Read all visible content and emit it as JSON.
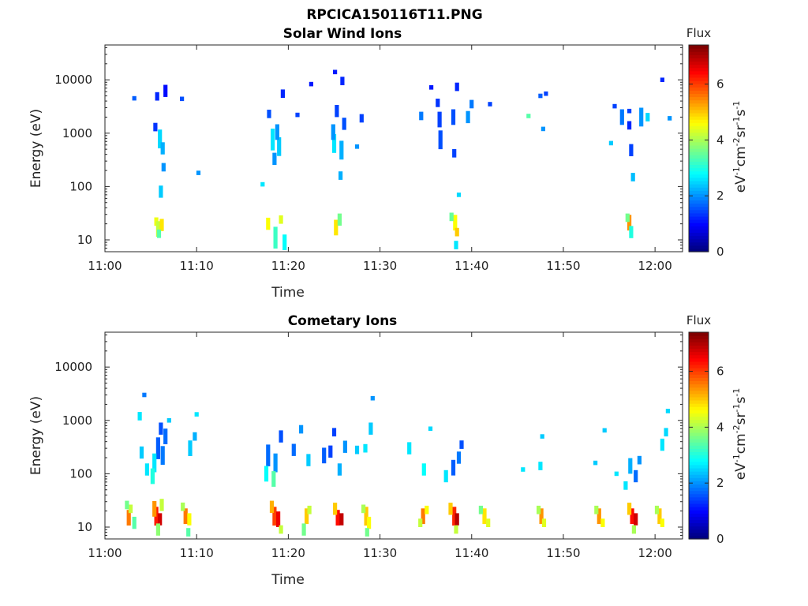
{
  "figure": {
    "title": "RPCICA150116T11.PNG"
  },
  "chart_data": [
    {
      "type": "heatmap",
      "title": "Solar Wind Ions",
      "xlabel": "Time",
      "ylabel": "Energy (eV)",
      "y_scale": "log",
      "xlim": [
        "11:00",
        "12:03"
      ],
      "ylim": [
        6,
        45000
      ],
      "x_ticks": [
        "11:00",
        "11:10",
        "11:20",
        "11:30",
        "11:40",
        "11:50",
        "12:00"
      ],
      "y_ticks": [
        {
          "value": 10,
          "label": "10"
        },
        {
          "value": 100,
          "label": "100"
        },
        {
          "value": 1000,
          "label": "1000"
        },
        {
          "value": 10000,
          "label": "10000"
        }
      ],
      "colorbar": {
        "title": "Flux",
        "unit": "eV-1cm-2sr-1s-1",
        "range": [
          0,
          7.4
        ],
        "ticks": [
          0,
          2,
          4,
          6
        ],
        "colormap": "jet"
      },
      "cells": [
        [
          5.6,
          22,
          4.5,
          1.2
        ],
        [
          5.8,
          16,
          4.2,
          1.4
        ],
        [
          6.2,
          19,
          4.8,
          1.3
        ],
        [
          5.9,
          13,
          3.4,
          1.2
        ],
        [
          6.0,
          780,
          2.5,
          1.5
        ],
        [
          6.3,
          520,
          2.2,
          1.3
        ],
        [
          5.7,
          4900,
          1.2,
          1.2
        ],
        [
          6.6,
          6200,
          1.0,
          1.3
        ],
        [
          5.5,
          1300,
          1.3,
          1.2
        ],
        [
          6.4,
          230,
          2.0,
          1.2
        ],
        [
          6.1,
          80,
          2.4,
          1.3
        ],
        [
          3.2,
          4500,
          1.6,
          1.1
        ],
        [
          8.4,
          4400,
          1.5,
          1.1
        ],
        [
          10.2,
          180,
          2.0,
          1.1
        ],
        [
          17.8,
          20,
          4.6,
          1.3
        ],
        [
          18.6,
          11,
          3.2,
          1.6
        ],
        [
          19.2,
          24,
          4.4,
          1.2
        ],
        [
          19.6,
          9,
          2.8,
          1.4
        ],
        [
          18.3,
          760,
          2.6,
          1.6
        ],
        [
          19.0,
          560,
          2.4,
          1.5
        ],
        [
          18.8,
          1050,
          2.0,
          1.4
        ],
        [
          17.9,
          2300,
          1.5,
          1.2
        ],
        [
          19.4,
          5500,
          1.2,
          1.2
        ],
        [
          17.2,
          110,
          2.6,
          1.1
        ],
        [
          18.5,
          330,
          2.0,
          1.3
        ],
        [
          22.5,
          8300,
          1.1,
          1.1
        ],
        [
          21.0,
          2200,
          1.4,
          1.1
        ],
        [
          25.2,
          17,
          4.8,
          1.4
        ],
        [
          25.6,
          24,
          3.6,
          1.3
        ],
        [
          25.0,
          640,
          2.6,
          1.5
        ],
        [
          25.8,
          480,
          2.2,
          1.5
        ],
        [
          24.9,
          1050,
          2.0,
          1.4
        ],
        [
          25.3,
          2600,
          1.4,
          1.3
        ],
        [
          25.9,
          9500,
          1.2,
          1.2
        ],
        [
          25.1,
          14000,
          1.1,
          1.1
        ],
        [
          26.1,
          1500,
          1.5,
          1.3
        ],
        [
          25.7,
          160,
          2.2,
          1.2
        ],
        [
          28.0,
          1900,
          1.4,
          1.2
        ],
        [
          27.5,
          560,
          2.0,
          1.1
        ],
        [
          36.5,
          1800,
          1.4,
          1.4
        ],
        [
          36.6,
          750,
          1.5,
          1.5
        ],
        [
          36.3,
          3700,
          1.3,
          1.2
        ],
        [
          34.5,
          2100,
          1.8,
          1.2
        ],
        [
          35.6,
          7200,
          1.1,
          1.1
        ],
        [
          38.2,
          21,
          4.6,
          1.4
        ],
        [
          38.4,
          14,
          5.0,
          1.2
        ],
        [
          37.8,
          27,
          3.5,
          1.2
        ],
        [
          38.3,
          8,
          2.6,
          1.2
        ],
        [
          38.0,
          2000,
          1.5,
          1.4
        ],
        [
          38.4,
          7400,
          1.2,
          1.2
        ],
        [
          38.1,
          420,
          1.4,
          1.2
        ],
        [
          38.6,
          70,
          2.5,
          1.1
        ],
        [
          39.6,
          2000,
          2.0,
          1.3
        ],
        [
          42.0,
          3500,
          1.4,
          1.1
        ],
        [
          40.0,
          3500,
          1.8,
          1.2
        ],
        [
          46.2,
          2100,
          3.4,
          1.1
        ],
        [
          47.5,
          5000,
          1.6,
          1.1
        ],
        [
          48.1,
          5500,
          1.4,
          1.1
        ],
        [
          47.8,
          1200,
          2.0,
          1.1
        ],
        [
          57.2,
          21,
          5.4,
          1.4
        ],
        [
          57.4,
          14,
          3.0,
          1.3
        ],
        [
          57.0,
          26,
          3.6,
          1.2
        ],
        [
          56.4,
          2000,
          1.8,
          1.4
        ],
        [
          57.2,
          1400,
          1.2,
          1.2
        ],
        [
          58.5,
          2000,
          2.0,
          1.5
        ],
        [
          59.2,
          2000,
          2.5,
          1.2
        ],
        [
          57.4,
          480,
          1.4,
          1.3
        ],
        [
          57.6,
          150,
          2.3,
          1.2
        ],
        [
          57.2,
          2600,
          1.4,
          1.1
        ],
        [
          55.6,
          3200,
          1.4,
          1.1
        ],
        [
          60.8,
          10000,
          1.2,
          1.1
        ],
        [
          61.6,
          1900,
          2.0,
          1.1
        ],
        [
          55.2,
          650,
          2.4,
          1.1
        ]
      ]
    },
    {
      "type": "heatmap",
      "title": "Cometary Ions",
      "xlabel": "Time",
      "ylabel": "Energy (eV)",
      "y_scale": "log",
      "xlim": [
        "11:00",
        "12:03"
      ],
      "ylim": [
        6,
        45000
      ],
      "x_ticks": [
        "11:00",
        "11:10",
        "11:20",
        "11:30",
        "11:40",
        "11:50",
        "12:00"
      ],
      "y_ticks": [
        {
          "value": 10,
          "label": "10"
        },
        {
          "value": 100,
          "label": "100"
        },
        {
          "value": 1000,
          "label": "1000"
        },
        {
          "value": 10000,
          "label": "10000"
        }
      ],
      "colorbar": {
        "title": "Flux",
        "unit": "eV-1cm-2sr-1s-1",
        "range": [
          0,
          7.4
        ],
        "ticks": [
          0,
          2,
          4,
          6
        ],
        "colormap": "jet"
      },
      "cells": [
        [
          2.6,
          15,
          5.6,
          1.4
        ],
        [
          2.8,
          22,
          4.2,
          1.2
        ],
        [
          3.2,
          12,
          3.4,
          1.3
        ],
        [
          2.4,
          26,
          3.6,
          1.2
        ],
        [
          5.6,
          16,
          6.3,
          1.5
        ],
        [
          6.0,
          14,
          6.8,
          1.3
        ],
        [
          5.4,
          22,
          5.4,
          1.4
        ],
        [
          6.2,
          26,
          4.2,
          1.3
        ],
        [
          5.8,
          9,
          3.8,
          1.3
        ],
        [
          8.8,
          16,
          5.6,
          1.4
        ],
        [
          9.2,
          14,
          4.6,
          1.3
        ],
        [
          8.5,
          24,
          4.0,
          1.2
        ],
        [
          9.1,
          8,
          3.4,
          1.2
        ],
        [
          5.8,
          300,
          1.6,
          1.6
        ],
        [
          6.3,
          220,
          1.8,
          1.5
        ],
        [
          5.4,
          160,
          2.6,
          1.5
        ],
        [
          6.6,
          500,
          1.7,
          1.4
        ],
        [
          6.1,
          700,
          1.5,
          1.3
        ],
        [
          5.2,
          90,
          3.0,
          1.4
        ],
        [
          4.6,
          120,
          2.6,
          1.3
        ],
        [
          4.0,
          250,
          2.4,
          1.3
        ],
        [
          4.3,
          3000,
          1.8,
          1.1
        ],
        [
          3.8,
          1200,
          2.6,
          1.2
        ],
        [
          9.3,
          300,
          2.4,
          1.4
        ],
        [
          9.8,
          500,
          2.2,
          1.2
        ],
        [
          10.0,
          1300,
          2.6,
          1.1
        ],
        [
          7.0,
          1000,
          2.4,
          1.1
        ],
        [
          18.5,
          16,
          6.0,
          1.5
        ],
        [
          18.9,
          14,
          6.6,
          1.4
        ],
        [
          18.2,
          24,
          5.2,
          1.3
        ],
        [
          19.2,
          9,
          4.2,
          1.2
        ],
        [
          22.0,
          16,
          5.0,
          1.4
        ],
        [
          22.3,
          21,
          4.2,
          1.2
        ],
        [
          21.7,
          9,
          3.6,
          1.3
        ],
        [
          25.4,
          15,
          6.4,
          1.4
        ],
        [
          25.8,
          14,
          6.9,
          1.3
        ],
        [
          25.1,
          22,
          5.0,
          1.3
        ],
        [
          28.5,
          16,
          5.0,
          1.5
        ],
        [
          28.8,
          12,
          4.6,
          1.3
        ],
        [
          28.2,
          22,
          4.0,
          1.2
        ],
        [
          28.6,
          8,
          3.6,
          1.2
        ],
        [
          17.8,
          220,
          1.7,
          1.6
        ],
        [
          18.6,
          160,
          2.0,
          1.5
        ],
        [
          19.2,
          500,
          1.5,
          1.3
        ],
        [
          17.6,
          100,
          2.8,
          1.4
        ],
        [
          18.4,
          80,
          3.4,
          1.4
        ],
        [
          20.6,
          280,
          1.7,
          1.3
        ],
        [
          22.2,
          180,
          2.4,
          1.3
        ],
        [
          21.4,
          680,
          2.0,
          1.2
        ],
        [
          23.9,
          220,
          1.6,
          1.4
        ],
        [
          24.6,
          260,
          1.4,
          1.3
        ],
        [
          25.0,
          600,
          1.4,
          1.2
        ],
        [
          26.2,
          320,
          2.0,
          1.3
        ],
        [
          25.6,
          120,
          2.2,
          1.3
        ],
        [
          27.5,
          280,
          2.4,
          1.2
        ],
        [
          29.0,
          700,
          2.4,
          1.3
        ],
        [
          28.4,
          300,
          2.6,
          1.2
        ],
        [
          29.2,
          2600,
          2.0,
          1.1
        ],
        [
          34.7,
          16,
          5.6,
          1.4
        ],
        [
          35.1,
          21,
          4.6,
          1.2
        ],
        [
          34.4,
          12,
          4.2,
          1.2
        ],
        [
          38.1,
          16,
          6.2,
          1.5
        ],
        [
          38.4,
          14,
          7.0,
          1.3
        ],
        [
          37.7,
          22,
          5.0,
          1.3
        ],
        [
          38.3,
          9,
          4.2,
          1.2
        ],
        [
          41.4,
          16,
          4.8,
          1.4
        ],
        [
          41.8,
          12,
          4.4,
          1.2
        ],
        [
          41.0,
          21,
          3.6,
          1.2
        ],
        [
          33.2,
          300,
          2.6,
          1.3
        ],
        [
          34.8,
          120,
          2.8,
          1.3
        ],
        [
          38.0,
          130,
          1.6,
          1.4
        ],
        [
          38.6,
          200,
          1.8,
          1.3
        ],
        [
          37.2,
          90,
          2.6,
          1.3
        ],
        [
          38.9,
          350,
          1.5,
          1.2
        ],
        [
          35.5,
          700,
          2.5,
          1.1
        ],
        [
          47.6,
          16,
          5.4,
          1.4
        ],
        [
          47.9,
          12,
          4.4,
          1.2
        ],
        [
          47.3,
          21,
          4.0,
          1.2
        ],
        [
          53.9,
          16,
          5.4,
          1.4
        ],
        [
          54.3,
          12,
          4.6,
          1.2
        ],
        [
          53.6,
          21,
          4.0,
          1.2
        ],
        [
          57.5,
          16,
          6.4,
          1.4
        ],
        [
          57.9,
          14,
          6.8,
          1.3
        ],
        [
          57.2,
          22,
          5.0,
          1.3
        ],
        [
          57.7,
          9,
          4.0,
          1.2
        ],
        [
          60.5,
          16,
          5.0,
          1.4
        ],
        [
          60.8,
          12,
          4.6,
          1.2
        ],
        [
          60.2,
          21,
          4.0,
          1.2
        ],
        [
          47.7,
          500,
          2.4,
          1.1
        ],
        [
          47.5,
          140,
          2.6,
          1.2
        ],
        [
          54.5,
          650,
          2.4,
          1.1
        ],
        [
          57.3,
          140,
          2.2,
          1.4
        ],
        [
          57.9,
          90,
          1.7,
          1.3
        ],
        [
          58.3,
          180,
          2.0,
          1.2
        ],
        [
          56.8,
          60,
          2.6,
          1.2
        ],
        [
          60.8,
          350,
          2.6,
          1.3
        ],
        [
          61.2,
          600,
          2.5,
          1.2
        ],
        [
          61.4,
          1500,
          2.5,
          1.1
        ],
        [
          53.5,
          160,
          2.4,
          1.1
        ],
        [
          55.8,
          100,
          2.6,
          1.1
        ],
        [
          45.6,
          120,
          2.6,
          1.1
        ]
      ]
    }
  ]
}
